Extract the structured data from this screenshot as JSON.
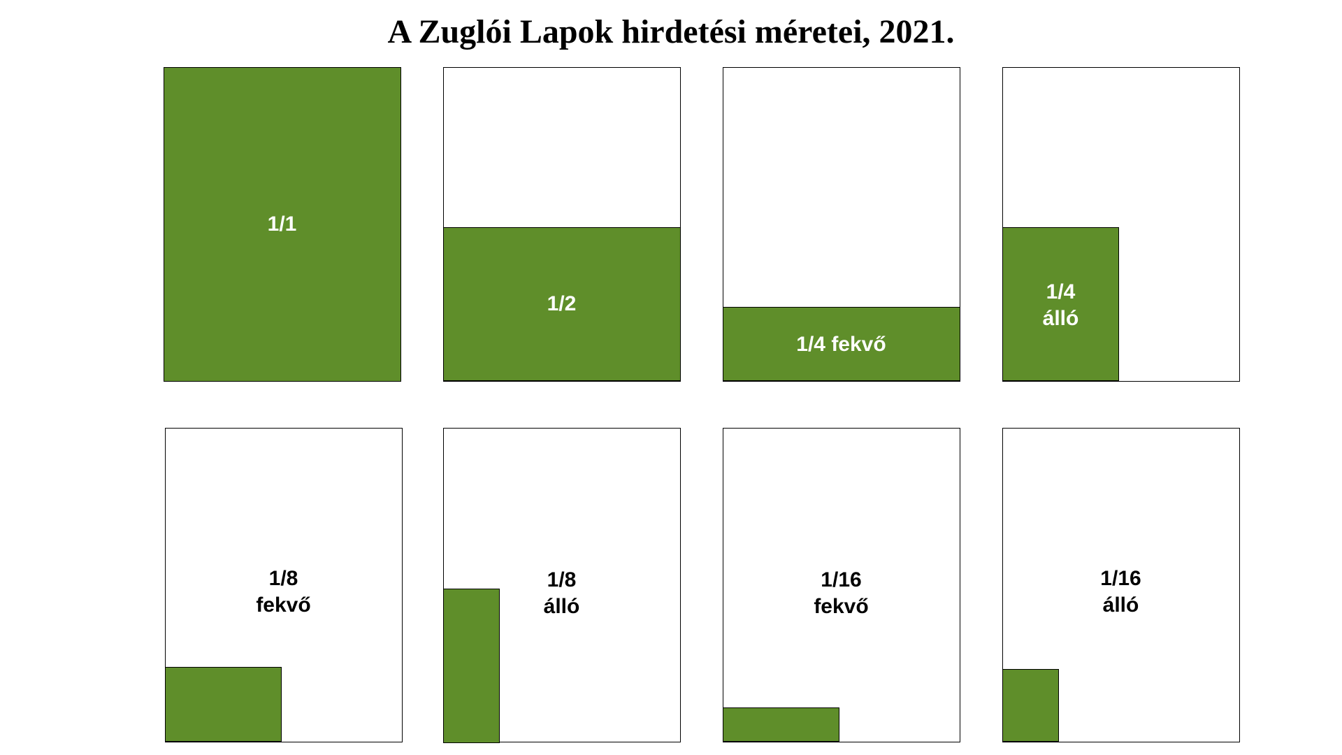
{
  "title": "A Zuglói Lapok hirdetési méretei, 2021.",
  "colors": {
    "ad_fill": "#5f8e2a",
    "page_border": "#000000",
    "label_on_ad": "#ffffff",
    "label_on_page": "#000000"
  },
  "panels": [
    {
      "label_lines": [
        "1/1"
      ]
    },
    {
      "label_lines": [
        "1/2"
      ]
    },
    {
      "label_lines": [
        "1/4 fekvő"
      ]
    },
    {
      "label_lines": [
        "1/4",
        "álló"
      ]
    },
    {
      "label_lines": [
        "1/8",
        "fekvő"
      ]
    },
    {
      "label_lines": [
        "1/8",
        "álló"
      ]
    },
    {
      "label_lines": [
        "1/16",
        "fekvő"
      ]
    },
    {
      "label_lines": [
        "1/16",
        "álló"
      ]
    }
  ]
}
